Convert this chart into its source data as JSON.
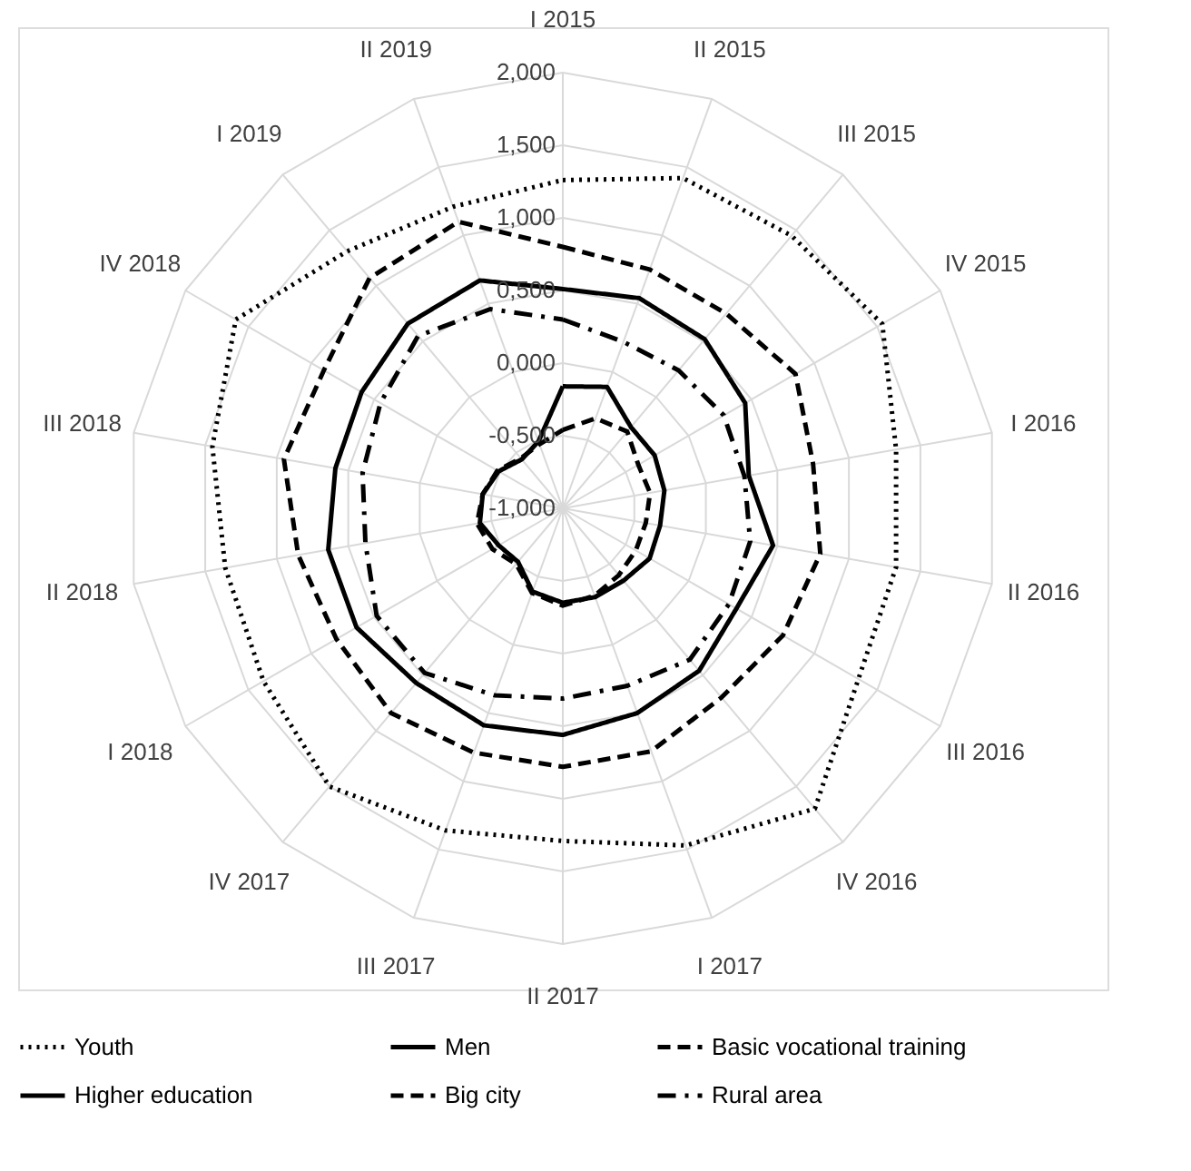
{
  "chart_data": {
    "type": "radar",
    "categories": [
      "I 2015",
      "II 2015",
      "III 2015",
      "IV 2015",
      "I 2016",
      "II 2016",
      "III 2016",
      "IV 2016",
      "I 2017",
      "II 2017",
      "III 2017",
      "IV 2017",
      "I 2018",
      "II 2018",
      "III 2018",
      "IV 2018",
      "I 2019",
      "II 2019"
    ],
    "ylim": [
      -1,
      2
    ],
    "yticks": [
      {
        "value": -1,
        "label": "-1,000"
      },
      {
        "value": -0.5,
        "label": "-0,500"
      },
      {
        "value": 0,
        "label": "0,000"
      },
      {
        "value": 0.5,
        "label": "0,500"
      },
      {
        "value": 1,
        "label": "1,000"
      },
      {
        "value": 1.5,
        "label": "1,500"
      },
      {
        "value": 2,
        "label": "2,000"
      }
    ],
    "grid": true,
    "legend": "bottom",
    "series": [
      {
        "name": "Youth",
        "color": "#000000",
        "line_style": "dotted",
        "values": [
          1.26,
          1.42,
          1.45,
          1.54,
          1.33,
          1.33,
          1.35,
          1.7,
          1.47,
          1.29,
          1.36,
          1.5,
          1.38,
          1.36,
          1.45,
          1.6,
          1.31,
          1.21
        ]
      },
      {
        "name": "Men",
        "color": "#000000",
        "line_style": "solid",
        "values": [
          0.51,
          0.54,
          0.52,
          0.45,
          0.3,
          0.47,
          0.38,
          0.46,
          0.5,
          0.56,
          0.59,
          0.57,
          0.64,
          0.64,
          0.59,
          0.6,
          0.66,
          0.67
        ]
      },
      {
        "name": "Basic vocational training",
        "color": "#000000",
        "line_style": "dashed",
        "values": [
          0.8,
          0.75,
          0.75,
          0.85,
          0.75,
          0.8,
          0.75,
          0.7,
          0.78,
          0.78,
          0.79,
          0.84,
          0.8,
          0.85,
          0.95,
          0.9,
          1.07,
          1.1
        ]
      },
      {
        "name": "Higher education",
        "color": "#000000",
        "line_style": "solid",
        "values": [
          -0.16,
          -0.11,
          -0.27,
          -0.27,
          -0.29,
          -0.32,
          -0.31,
          -0.35,
          -0.35,
          -0.35,
          -0.39,
          -0.52,
          -0.49,
          -0.42,
          -0.44,
          -0.49,
          -0.56,
          -0.51
        ]
      },
      {
        "name": "Big city",
        "color": "#000000",
        "line_style": "dashed",
        "values": [
          -0.46,
          -0.34,
          -0.31,
          -0.4,
          -0.39,
          -0.42,
          -0.42,
          -0.4,
          -0.36,
          -0.33,
          -0.38,
          -0.5,
          -0.44,
          -0.4,
          -0.44,
          -0.48,
          -0.55,
          -0.53
        ]
      },
      {
        "name": "Rural area",
        "color": "#000000",
        "line_style": "dashdot",
        "values": [
          0.3,
          0.22,
          0.24,
          0.28,
          0.27,
          0.31,
          0.32,
          0.36,
          0.3,
          0.31,
          0.37,
          0.48,
          0.48,
          0.38,
          0.4,
          0.45,
          0.55,
          0.46
        ]
      }
    ]
  }
}
